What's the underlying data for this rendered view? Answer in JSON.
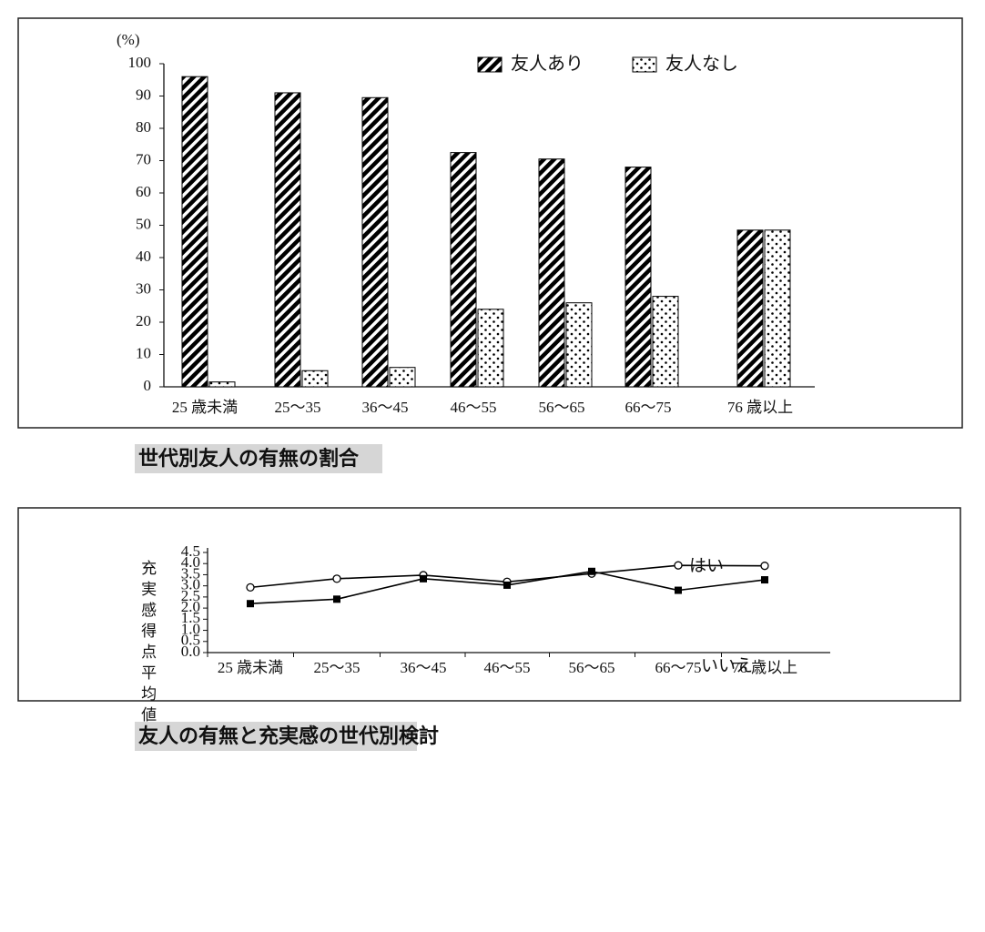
{
  "chart_data": [
    {
      "type": "bar",
      "title": "世代別友人の有無の割合",
      "y_label": "(%)",
      "categories": [
        "25 歳未満",
        "25〜35",
        "36〜45",
        "46〜55",
        "56〜65",
        "66〜75",
        "76 歳以上"
      ],
      "series": [
        {
          "name": "友人あり",
          "color": "#000000",
          "pattern": "hatch",
          "values": [
            96,
            91,
            89.5,
            72.5,
            70.5,
            68,
            48.5
          ]
        },
        {
          "name": "友人なし",
          "color": "#000000",
          "pattern": "dots",
          "values": [
            1.5,
            5,
            6,
            24,
            26,
            28,
            48.5
          ]
        }
      ],
      "ylim": [
        0,
        100
      ],
      "yticks": [
        0,
        10,
        20,
        30,
        40,
        50,
        60,
        70,
        80,
        90,
        100
      ],
      "legend": "top-right",
      "grid": false
    },
    {
      "type": "line",
      "title": "友人の有無と充実感の世代別検討",
      "y_label": "充実感得点平均値",
      "categories": [
        "25 歳未満",
        "25〜35",
        "36〜45",
        "46〜55",
        "56〜65",
        "66〜75",
        "76 歳以上"
      ],
      "series": [
        {
          "name": "はい",
          "color": "#000000",
          "marker": "circle",
          "values": [
            2.93,
            3.32,
            3.48,
            3.18,
            3.55,
            3.92,
            3.9
          ]
        },
        {
          "name": "いいえ",
          "color": "#000000",
          "marker": "square",
          "values": [
            2.2,
            2.4,
            3.32,
            3.03,
            3.65,
            2.8,
            3.27
          ]
        }
      ],
      "ylim": [
        0,
        4.5
      ],
      "yticks": [
        {
          "value": 0,
          "label": "0.0"
        },
        0.5,
        {
          "value": 1,
          "label": "1.0"
        },
        1.5,
        {
          "value": 2,
          "label": "2.0"
        },
        2.5,
        {
          "value": 3,
          "label": "3.0"
        },
        3.5,
        {
          "value": 4,
          "label": "4.0"
        },
        4.5
      ],
      "grid": false
    }
  ]
}
